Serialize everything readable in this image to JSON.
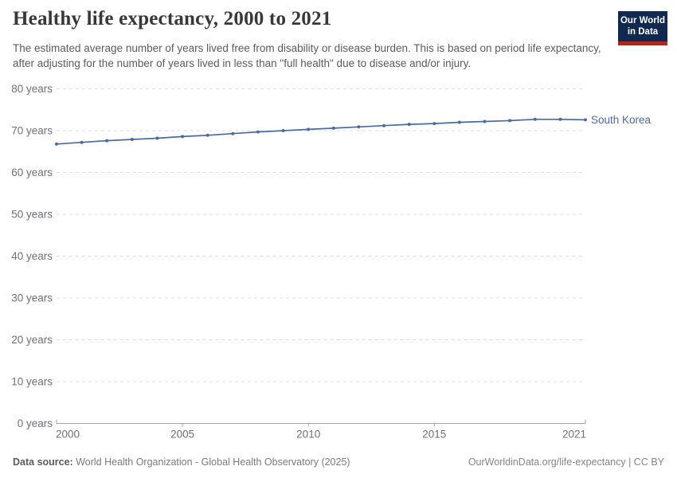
{
  "header": {
    "title": "Healthy life expectancy, 2000 to 2021",
    "subtitle": "The estimated average number of years lived free from disability or disease burden. This is based on period life expectancy, after adjusting for the number of years lived in less than \"full health\" due to disease and/or injury.",
    "logo": {
      "line1": "Our World",
      "line2": "in Data",
      "bg_color": "#12294f",
      "stripe_color": "#a52a22"
    }
  },
  "chart_data": {
    "type": "line",
    "title": "Healthy life expectancy, 2000 to 2021",
    "x": [
      2000,
      2001,
      2002,
      2003,
      2004,
      2005,
      2006,
      2007,
      2008,
      2009,
      2010,
      2011,
      2012,
      2013,
      2014,
      2015,
      2016,
      2017,
      2018,
      2019,
      2020,
      2021
    ],
    "series": [
      {
        "name": "South Korea",
        "color": "#4C6A9C",
        "values": [
          66.8,
          67.2,
          67.6,
          67.9,
          68.2,
          68.6,
          68.9,
          69.3,
          69.7,
          70.0,
          70.3,
          70.6,
          70.9,
          71.2,
          71.5,
          71.7,
          72.0,
          72.2,
          72.4,
          72.7,
          72.7,
          72.6
        ]
      }
    ],
    "xlabel": "",
    "ylabel": "",
    "ylim": [
      0,
      80
    ],
    "xlim": [
      2000,
      2021
    ],
    "yticks": [
      0,
      10,
      20,
      30,
      40,
      50,
      60,
      70,
      80
    ],
    "ytick_labels": [
      "0 years",
      "10 years",
      "20 years",
      "30 years",
      "40 years",
      "50 years",
      "60 years",
      "70 years",
      "80 years"
    ],
    "xticks": [
      2000,
      2005,
      2010,
      2015,
      2021
    ],
    "grid": "horizontal-dashed",
    "legend_position": "end-of-line",
    "colors": {
      "gridline": "#dcdcdc",
      "axis": "#a3a3a3",
      "tick_text": "#6e7079"
    }
  },
  "footer": {
    "source_label": "Data source:",
    "source_text": " World Health Organization - Global Health Observatory (2025)",
    "link_text": "OurWorldinData.org/life-expectancy | CC BY"
  }
}
